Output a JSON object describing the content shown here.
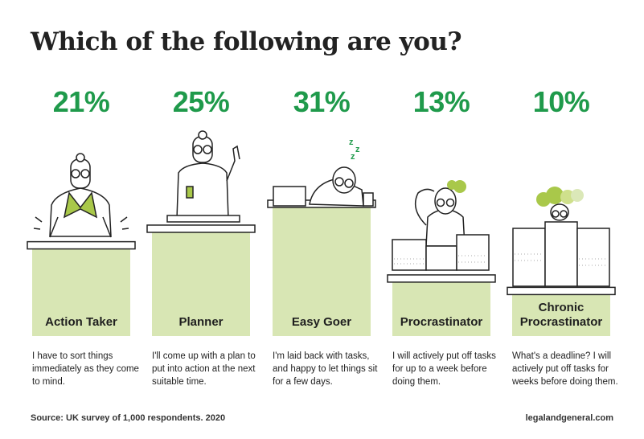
{
  "title": "Which of the following are you?",
  "chart_data": {
    "type": "bar",
    "categories": [
      "Action Taker",
      "Planner",
      "Easy Goer",
      "Procrastinator",
      "Chronic Procrastinator"
    ],
    "values": [
      21,
      25,
      31,
      13,
      10
    ],
    "value_labels": [
      "21%",
      "25%",
      "31%",
      "13%",
      "10%"
    ],
    "label_lines": [
      [
        "Action Taker"
      ],
      [
        "Planner"
      ],
      [
        "Easy Goer"
      ],
      [
        "Procrastinator"
      ],
      [
        "Chronic",
        "Procrastinator"
      ]
    ],
    "descriptions": [
      "I have to sort things immediately as they come to mind.",
      "I'll come up with a plan to put into action at the next suitable time.",
      "I'm laid back with tasks, and happy to let things sit for a few days.",
      "I will actively put off tasks for up to a week before doing them.",
      "What's a deadline? I will actively put off tasks for weeks before doing them."
    ],
    "colors": {
      "bar": "#d8e6b4",
      "value": "#1f9a4b",
      "accent": "#a9c84a",
      "outline": "#222222"
    }
  },
  "source": "Source: UK survey of 1,000 respondents. 2020",
  "site": "legalandgeneral.com",
  "sleep_letters": [
    "z",
    "z",
    "z"
  ]
}
